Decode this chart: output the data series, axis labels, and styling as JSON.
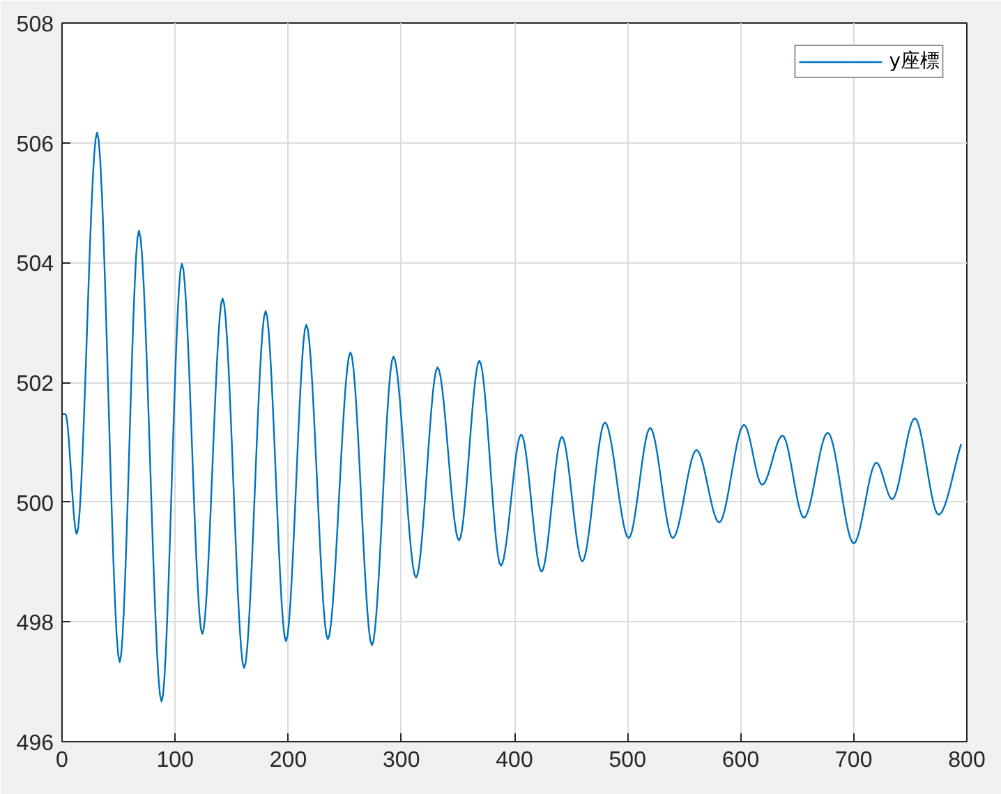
{
  "chart_data": {
    "type": "line",
    "x": [
      0,
      3,
      13,
      31,
      51,
      68,
      88,
      106,
      124,
      142,
      161,
      180,
      198,
      216,
      235,
      255,
      274,
      293,
      313,
      332,
      351,
      369,
      388,
      406,
      424,
      442,
      460,
      480,
      501,
      520,
      540,
      561,
      581,
      603,
      619,
      637,
      656,
      677,
      700,
      720,
      734,
      754,
      775,
      795
    ],
    "series": [
      {
        "name": "y座標",
        "color": "#0072bd",
        "values": [
          501.47,
          501.47,
          499.47,
          506.17,
          497.33,
          504.53,
          496.67,
          503.98,
          497.8,
          503.4,
          497.23,
          503.19,
          497.68,
          502.96,
          497.71,
          502.5,
          497.61,
          502.43,
          498.74,
          502.25,
          499.36,
          502.36,
          498.94,
          501.13,
          498.84,
          501.09,
          499.01,
          501.33,
          499.4,
          501.24,
          499.4,
          500.87,
          499.66,
          501.29,
          500.29,
          501.11,
          499.74,
          501.16,
          499.31,
          500.66,
          500.05,
          501.4,
          499.79,
          500.97
        ]
      }
    ],
    "xlim": [
      0,
      800
    ],
    "ylim": [
      496,
      508
    ],
    "xticks": [
      0,
      100,
      200,
      300,
      400,
      500,
      600,
      700,
      800
    ],
    "yticks": [
      496,
      498,
      500,
      502,
      504,
      506,
      508
    ],
    "grid": true,
    "legend": "top right",
    "line_style": "solid"
  }
}
